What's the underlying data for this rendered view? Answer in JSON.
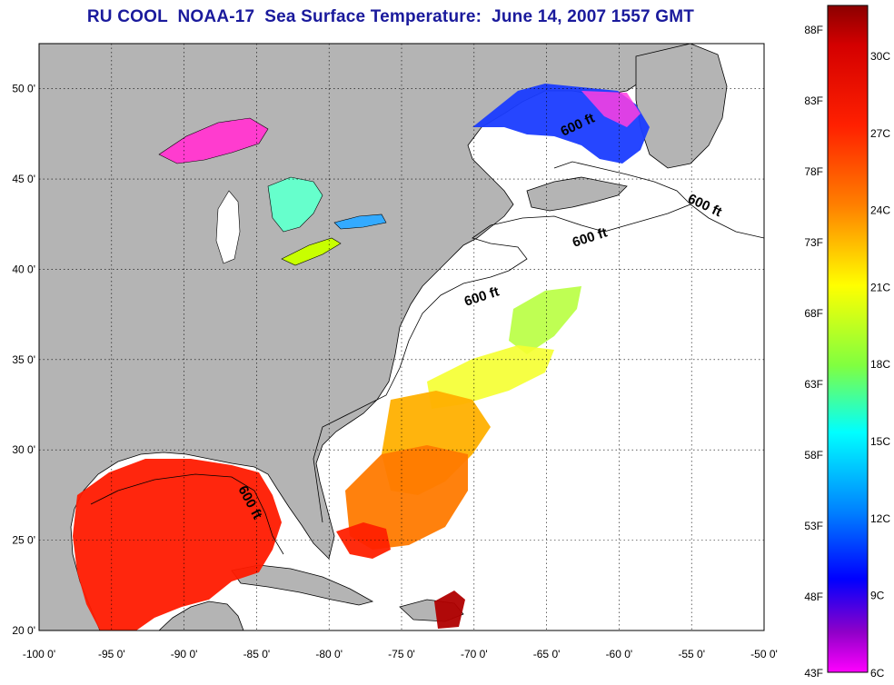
{
  "title": "RU COOL  NOAA-17  Sea Surface Temperature:  June 14, 2007 1557 GMT",
  "map": {
    "lon_range": [
      -100,
      -50
    ],
    "lat_range": [
      20,
      52.5
    ],
    "lon_ticks": [
      "-100 0'",
      "-95 0'",
      "-90 0'",
      "-85 0'",
      "-80 0'",
      "-75 0'",
      "-70 0'",
      "-65 0'",
      "-60 0'",
      "-55 0'",
      "-50 0'"
    ],
    "lat_ticks": [
      "20 0'",
      "25 0'",
      "30 0'",
      "35 0'",
      "40 0'",
      "45 0'",
      "50 0'"
    ],
    "contour_labels": [
      "600 ft",
      "600 ft",
      "600 ft",
      "600 ft",
      "600 ft"
    ],
    "land_color": "#b4b4b4",
    "ocean_color": "#ffffff"
  },
  "colorbar": {
    "fahrenheit_labels": [
      "88F",
      "83F",
      "78F",
      "73F",
      "68F",
      "63F",
      "58F",
      "53F",
      "48F",
      "43F"
    ],
    "celsius_labels": [
      "30C",
      "27C",
      "24C",
      "21C",
      "18C",
      "15C",
      "12C",
      "9C",
      "6C"
    ],
    "gradient_stops": [
      "#8b0000",
      "#ff0000",
      "#ff8000",
      "#ffff00",
      "#80ff40",
      "#00ffff",
      "#0080ff",
      "#0000ff",
      "#8000c0",
      "#ff00ff"
    ]
  }
}
